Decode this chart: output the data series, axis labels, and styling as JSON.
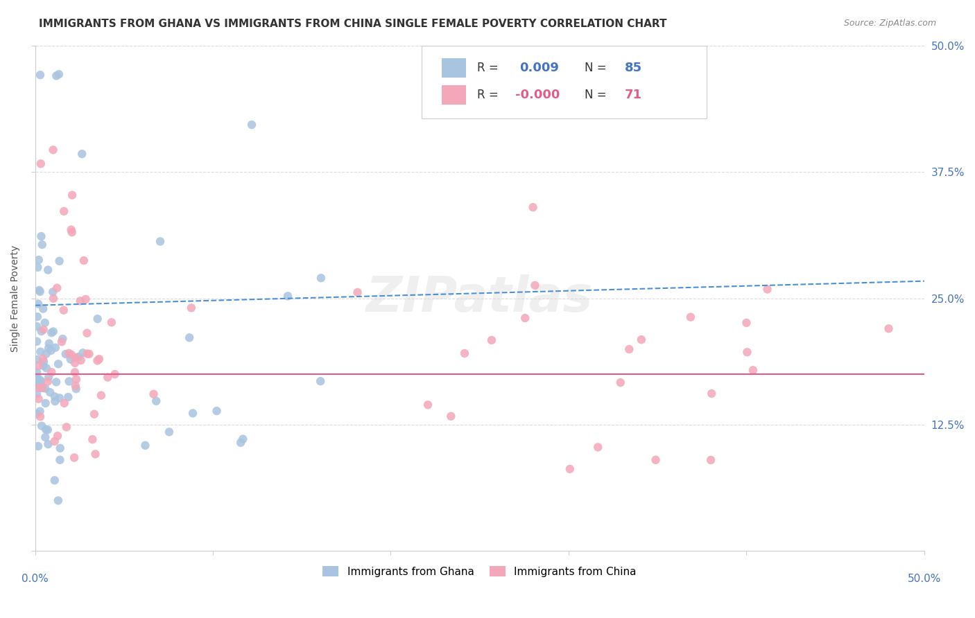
{
  "title": "IMMIGRANTS FROM GHANA VS IMMIGRANTS FROM CHINA SINGLE FEMALE POVERTY CORRELATION CHART",
  "source": "Source: ZipAtlas.com",
  "ylabel": "Single Female Poverty",
  "xlim": [
    0.0,
    0.5
  ],
  "ylim": [
    0.0,
    0.5
  ],
  "ghana_R": "0.009",
  "ghana_N": "85",
  "china_R": "-0.000",
  "china_N": "71",
  "ghana_color": "#a8c4e0",
  "china_color": "#f4a7b9",
  "ghana_line_color": "#4a90d9",
  "china_line_color": "#e05c8a",
  "background_color": "#ffffff",
  "grid_color": "#cccccc",
  "watermark": "ZIPatlas",
  "ghana_trend_y": [
    0.243,
    0.267
  ],
  "china_trend_y": [
    0.175,
    0.175
  ]
}
